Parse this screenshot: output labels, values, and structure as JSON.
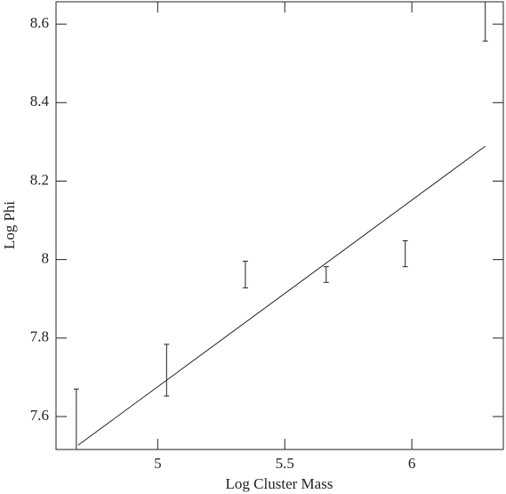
{
  "chart_data": {
    "type": "errorbar",
    "x_label": "Log Cluster Mass",
    "y_label": "Log Phi",
    "xlim": [
      4.6,
      6.36
    ],
    "ylim": [
      7.516,
      8.657
    ],
    "xticks": [
      5,
      5.5,
      6
    ],
    "yticks": [
      7.6,
      7.8,
      8,
      8.2,
      8.4,
      8.6
    ],
    "series": [
      {
        "type": "errorbar",
        "color": "#222",
        "x": [
          4.68,
          5.035,
          5.345,
          5.663,
          5.974,
          6.289
        ],
        "values": [
          7.52,
          7.718,
          7.962,
          7.962,
          8.015,
          8.607
        ],
        "errors": [
          0.15,
          0.066,
          0.034,
          0.02,
          0.033,
          0.05
        ]
      },
      {
        "type": "line",
        "color": "#222",
        "x": [
          4.687,
          6.289
        ],
        "values": [
          7.527,
          8.289
        ]
      }
    ]
  }
}
